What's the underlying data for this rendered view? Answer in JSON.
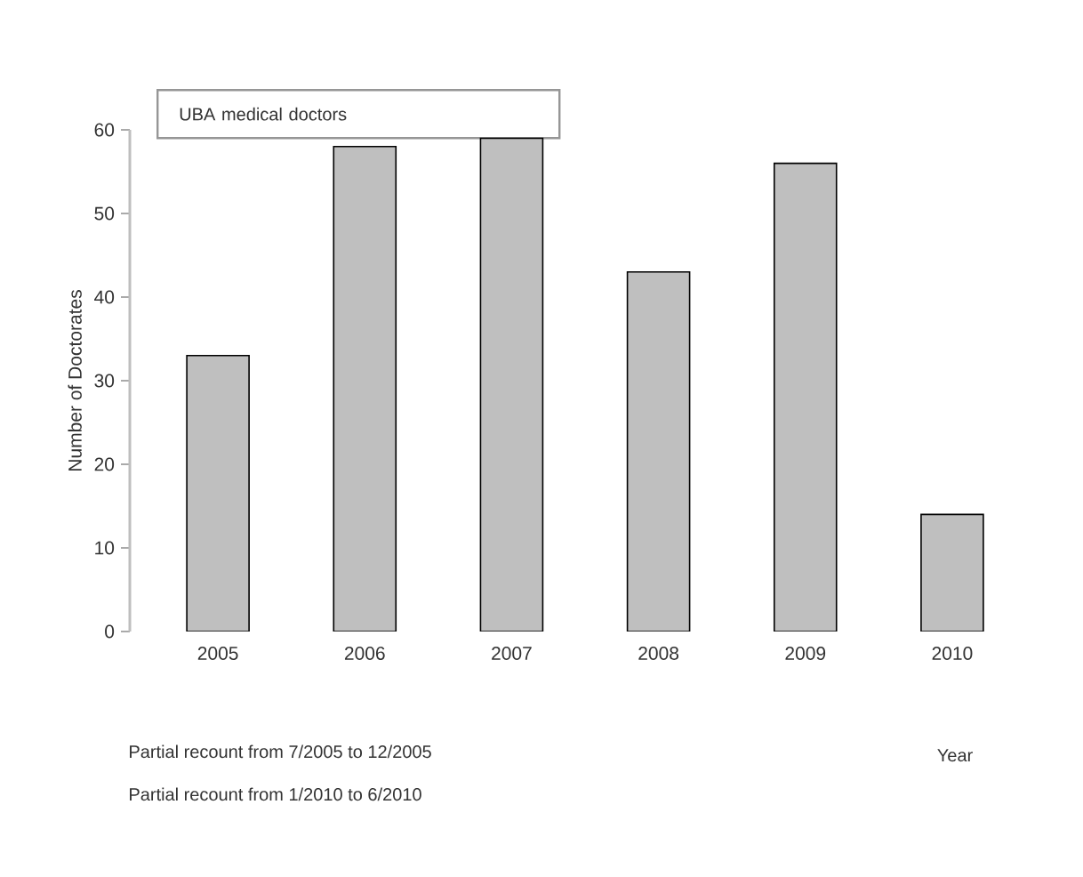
{
  "chart_data": {
    "type": "bar",
    "title": "UBA medical doctors",
    "ylabel": "Number of Doctorates",
    "categories": [
      "2005",
      "2006",
      "2007",
      "2008",
      "2009",
      "2010"
    ],
    "values": [
      33,
      58,
      59,
      43,
      56,
      14
    ],
    "color": "#bfbfbf",
    "ylim": [
      0,
      60
    ],
    "yticks": [
      0,
      10,
      20,
      30,
      40,
      50,
      60
    ],
    "annotations": [
      "Partial recount from 7/2005 to 12/2005",
      "Partial recount from 1/2010 to 6/2010",
      "Year"
    ]
  }
}
